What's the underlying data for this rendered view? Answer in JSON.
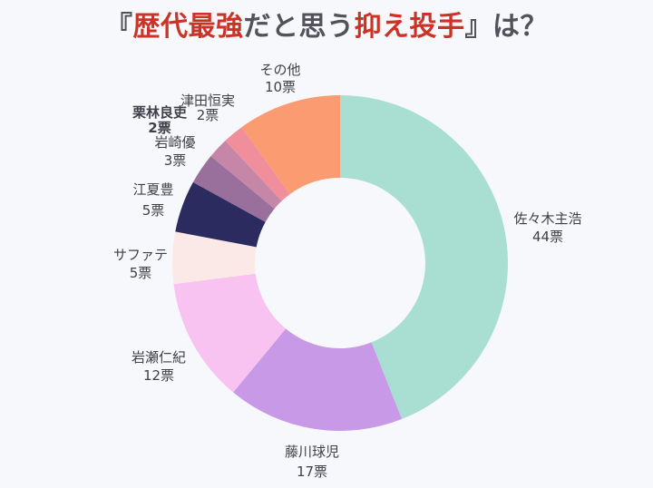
{
  "background_color": "#F7F8FB",
  "title": {
    "full_text": "『歴代最強だと思う抑え投手』は？",
    "segments": [
      {
        "text": "『",
        "color": "#53525B"
      },
      {
        "text": "歴代最強",
        "color": "#CC3327"
      },
      {
        "text": "だと思う",
        "color": "#53525B"
      },
      {
        "text": "抑え投手",
        "color": "#CC3327"
      },
      {
        "text": "』は？",
        "color": "#53525B"
      }
    ]
  },
  "chart_data": {
    "type": "pie",
    "variant": "donut",
    "title": "『歴代最強だと思う抑え投手』は？",
    "unit": "票",
    "total_votes": 100,
    "start_angle_deg": 0,
    "direction": "clockwise",
    "legend_position": "labels-around-chart",
    "label_text_color": "#403F48",
    "slices": [
      {
        "label": "佐々木主浩",
        "votes": 44,
        "votes_label": "44票",
        "color": "#A9DFD3",
        "bold": false
      },
      {
        "label": "藤川球児",
        "votes": 17,
        "votes_label": "17票",
        "color": "#C899E7",
        "bold": false
      },
      {
        "label": "岩瀬仁紀",
        "votes": 12,
        "votes_label": "12票",
        "color": "#F8C3F0",
        "bold": false
      },
      {
        "label": "サファテ",
        "votes": 5,
        "votes_label": "5票",
        "color": "#FAE9E7",
        "bold": false
      },
      {
        "label": "江夏豊",
        "votes": 5,
        "votes_label": "5票",
        "color": "#2C2B5F",
        "bold": false
      },
      {
        "label": "岩崎優",
        "votes": 3,
        "votes_label": "3票",
        "color": "#996F9C",
        "bold": false
      },
      {
        "label": "栗林良吏",
        "votes": 2,
        "votes_label": "2票",
        "color": "#C586A8",
        "bold": true
      },
      {
        "label": "津田恒実",
        "votes": 2,
        "votes_label": "2票",
        "color": "#F18E9C",
        "bold": false
      },
      {
        "label": "その他",
        "votes": 10,
        "votes_label": "10票",
        "color": "#FA9B71",
        "bold": false
      }
    ]
  }
}
